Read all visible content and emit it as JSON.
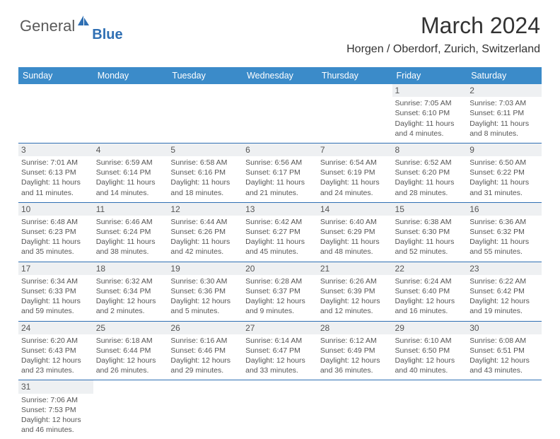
{
  "brand": {
    "main": "General",
    "sub": "Blue"
  },
  "title": "March 2024",
  "location": "Horgen / Oberdorf, Zurich, Switzerland",
  "colors": {
    "header_bg": "#3b8bc9",
    "border": "#2f6fb3",
    "daynum_bg": "#eef0f2",
    "text": "#555555"
  },
  "day_names": [
    "Sunday",
    "Monday",
    "Tuesday",
    "Wednesday",
    "Thursday",
    "Friday",
    "Saturday"
  ],
  "weeks": [
    [
      null,
      null,
      null,
      null,
      null,
      {
        "n": "1",
        "sr": "Sunrise: 7:05 AM",
        "ss": "Sunset: 6:10 PM",
        "dl": "Daylight: 11 hours and 4 minutes."
      },
      {
        "n": "2",
        "sr": "Sunrise: 7:03 AM",
        "ss": "Sunset: 6:11 PM",
        "dl": "Daylight: 11 hours and 8 minutes."
      }
    ],
    [
      {
        "n": "3",
        "sr": "Sunrise: 7:01 AM",
        "ss": "Sunset: 6:13 PM",
        "dl": "Daylight: 11 hours and 11 minutes."
      },
      {
        "n": "4",
        "sr": "Sunrise: 6:59 AM",
        "ss": "Sunset: 6:14 PM",
        "dl": "Daylight: 11 hours and 14 minutes."
      },
      {
        "n": "5",
        "sr": "Sunrise: 6:58 AM",
        "ss": "Sunset: 6:16 PM",
        "dl": "Daylight: 11 hours and 18 minutes."
      },
      {
        "n": "6",
        "sr": "Sunrise: 6:56 AM",
        "ss": "Sunset: 6:17 PM",
        "dl": "Daylight: 11 hours and 21 minutes."
      },
      {
        "n": "7",
        "sr": "Sunrise: 6:54 AM",
        "ss": "Sunset: 6:19 PM",
        "dl": "Daylight: 11 hours and 24 minutes."
      },
      {
        "n": "8",
        "sr": "Sunrise: 6:52 AM",
        "ss": "Sunset: 6:20 PM",
        "dl": "Daylight: 11 hours and 28 minutes."
      },
      {
        "n": "9",
        "sr": "Sunrise: 6:50 AM",
        "ss": "Sunset: 6:22 PM",
        "dl": "Daylight: 11 hours and 31 minutes."
      }
    ],
    [
      {
        "n": "10",
        "sr": "Sunrise: 6:48 AM",
        "ss": "Sunset: 6:23 PM",
        "dl": "Daylight: 11 hours and 35 minutes."
      },
      {
        "n": "11",
        "sr": "Sunrise: 6:46 AM",
        "ss": "Sunset: 6:24 PM",
        "dl": "Daylight: 11 hours and 38 minutes."
      },
      {
        "n": "12",
        "sr": "Sunrise: 6:44 AM",
        "ss": "Sunset: 6:26 PM",
        "dl": "Daylight: 11 hours and 42 minutes."
      },
      {
        "n": "13",
        "sr": "Sunrise: 6:42 AM",
        "ss": "Sunset: 6:27 PM",
        "dl": "Daylight: 11 hours and 45 minutes."
      },
      {
        "n": "14",
        "sr": "Sunrise: 6:40 AM",
        "ss": "Sunset: 6:29 PM",
        "dl": "Daylight: 11 hours and 48 minutes."
      },
      {
        "n": "15",
        "sr": "Sunrise: 6:38 AM",
        "ss": "Sunset: 6:30 PM",
        "dl": "Daylight: 11 hours and 52 minutes."
      },
      {
        "n": "16",
        "sr": "Sunrise: 6:36 AM",
        "ss": "Sunset: 6:32 PM",
        "dl": "Daylight: 11 hours and 55 minutes."
      }
    ],
    [
      {
        "n": "17",
        "sr": "Sunrise: 6:34 AM",
        "ss": "Sunset: 6:33 PM",
        "dl": "Daylight: 11 hours and 59 minutes."
      },
      {
        "n": "18",
        "sr": "Sunrise: 6:32 AM",
        "ss": "Sunset: 6:34 PM",
        "dl": "Daylight: 12 hours and 2 minutes."
      },
      {
        "n": "19",
        "sr": "Sunrise: 6:30 AM",
        "ss": "Sunset: 6:36 PM",
        "dl": "Daylight: 12 hours and 5 minutes."
      },
      {
        "n": "20",
        "sr": "Sunrise: 6:28 AM",
        "ss": "Sunset: 6:37 PM",
        "dl": "Daylight: 12 hours and 9 minutes."
      },
      {
        "n": "21",
        "sr": "Sunrise: 6:26 AM",
        "ss": "Sunset: 6:39 PM",
        "dl": "Daylight: 12 hours and 12 minutes."
      },
      {
        "n": "22",
        "sr": "Sunrise: 6:24 AM",
        "ss": "Sunset: 6:40 PM",
        "dl": "Daylight: 12 hours and 16 minutes."
      },
      {
        "n": "23",
        "sr": "Sunrise: 6:22 AM",
        "ss": "Sunset: 6:42 PM",
        "dl": "Daylight: 12 hours and 19 minutes."
      }
    ],
    [
      {
        "n": "24",
        "sr": "Sunrise: 6:20 AM",
        "ss": "Sunset: 6:43 PM",
        "dl": "Daylight: 12 hours and 23 minutes."
      },
      {
        "n": "25",
        "sr": "Sunrise: 6:18 AM",
        "ss": "Sunset: 6:44 PM",
        "dl": "Daylight: 12 hours and 26 minutes."
      },
      {
        "n": "26",
        "sr": "Sunrise: 6:16 AM",
        "ss": "Sunset: 6:46 PM",
        "dl": "Daylight: 12 hours and 29 minutes."
      },
      {
        "n": "27",
        "sr": "Sunrise: 6:14 AM",
        "ss": "Sunset: 6:47 PM",
        "dl": "Daylight: 12 hours and 33 minutes."
      },
      {
        "n": "28",
        "sr": "Sunrise: 6:12 AM",
        "ss": "Sunset: 6:49 PM",
        "dl": "Daylight: 12 hours and 36 minutes."
      },
      {
        "n": "29",
        "sr": "Sunrise: 6:10 AM",
        "ss": "Sunset: 6:50 PM",
        "dl": "Daylight: 12 hours and 40 minutes."
      },
      {
        "n": "30",
        "sr": "Sunrise: 6:08 AM",
        "ss": "Sunset: 6:51 PM",
        "dl": "Daylight: 12 hours and 43 minutes."
      }
    ],
    [
      {
        "n": "31",
        "sr": "Sunrise: 7:06 AM",
        "ss": "Sunset: 7:53 PM",
        "dl": "Daylight: 12 hours and 46 minutes."
      },
      null,
      null,
      null,
      null,
      null,
      null
    ]
  ]
}
